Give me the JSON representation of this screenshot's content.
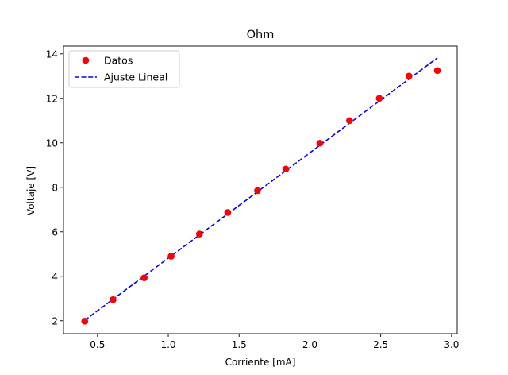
{
  "chart_data": {
    "type": "scatter",
    "title": "Ohm",
    "xlabel": "Corriente [mA]",
    "ylabel": "Voltaje [V]",
    "xlim": [
      0.26,
      3.04
    ],
    "ylim": [
      1.42,
      14.35
    ],
    "xticks": [
      0.5,
      1.0,
      1.5,
      2.0,
      2.5,
      3.0
    ],
    "xtick_labels": [
      "0.5",
      "1.0",
      "1.5",
      "2.0",
      "2.5",
      "3.0"
    ],
    "yticks": [
      2,
      4,
      6,
      8,
      10,
      12,
      14
    ],
    "ytick_labels": [
      "2",
      "4",
      "6",
      "8",
      "10",
      "12",
      "14"
    ],
    "grid": false,
    "legend_position": "top-left",
    "series": [
      {
        "name": "Datos",
        "kind": "scatter",
        "color": "#ff0000",
        "marker": "circle",
        "x": [
          0.41,
          0.61,
          0.83,
          1.02,
          1.22,
          1.42,
          1.63,
          1.83,
          2.07,
          2.28,
          2.49,
          2.7,
          2.9
        ],
        "y": [
          1.98,
          2.95,
          3.93,
          4.9,
          5.9,
          6.87,
          7.85,
          8.82,
          9.98,
          11.0,
          12.0,
          13.0,
          13.25
        ]
      },
      {
        "name": "Ajuste Lineal",
        "kind": "line",
        "color": "#0000ff",
        "linestyle": "dashed",
        "x": [
          0.41,
          2.9
        ],
        "y": [
          2.02,
          13.82
        ]
      }
    ]
  }
}
